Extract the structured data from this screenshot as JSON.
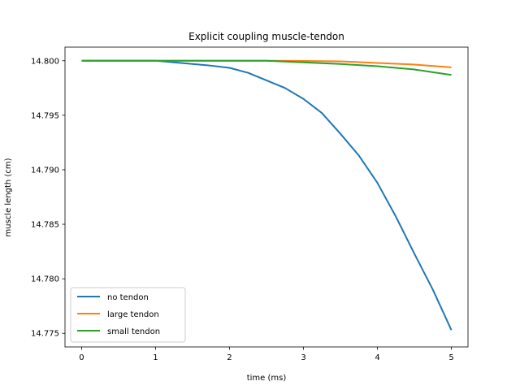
{
  "chart_data": {
    "type": "line",
    "title": "Explicit coupling muscle-tendon",
    "xlabel": "time (ms)",
    "ylabel": "muscle length (cm)",
    "xlim": [
      -0.225,
      5.225
    ],
    "ylim": [
      14.77375,
      14.80125
    ],
    "xticks": [
      0,
      1,
      2,
      3,
      4,
      5
    ],
    "yticks": [
      14.775,
      14.78,
      14.785,
      14.79,
      14.795,
      14.8
    ],
    "ytick_labels": [
      "14.775",
      "14.780",
      "14.785",
      "14.790",
      "14.795",
      "14.800"
    ],
    "grid": false,
    "legend_position": "lower-left",
    "series": [
      {
        "name": "no tendon",
        "color": "#1f77b4",
        "x": [
          0,
          0.5,
          1.0,
          1.25,
          1.5,
          1.75,
          2.0,
          2.25,
          2.5,
          2.75,
          3.0,
          3.25,
          3.5,
          3.75,
          4.0,
          4.25,
          4.5,
          4.75,
          5.0
        ],
        "y": [
          14.8,
          14.8,
          14.8,
          14.79985,
          14.7997,
          14.79955,
          14.79935,
          14.7989,
          14.7982,
          14.7975,
          14.7965,
          14.7952,
          14.7933,
          14.7913,
          14.7888,
          14.7857,
          14.7823,
          14.779,
          14.7753
        ]
      },
      {
        "name": "large tendon",
        "color": "#ff7f0e",
        "x": [
          0,
          2.5,
          3.0,
          3.5,
          4.0,
          4.5,
          5.0
        ],
        "y": [
          14.8,
          14.8,
          14.79998,
          14.79995,
          14.7998,
          14.79965,
          14.7994
        ]
      },
      {
        "name": "small tendon",
        "color": "#2ca02c",
        "x": [
          0,
          2.5,
          3.0,
          3.5,
          4.0,
          4.5,
          5.0
        ],
        "y": [
          14.8,
          14.8,
          14.79985,
          14.7997,
          14.7995,
          14.7992,
          14.7987
        ]
      }
    ]
  }
}
